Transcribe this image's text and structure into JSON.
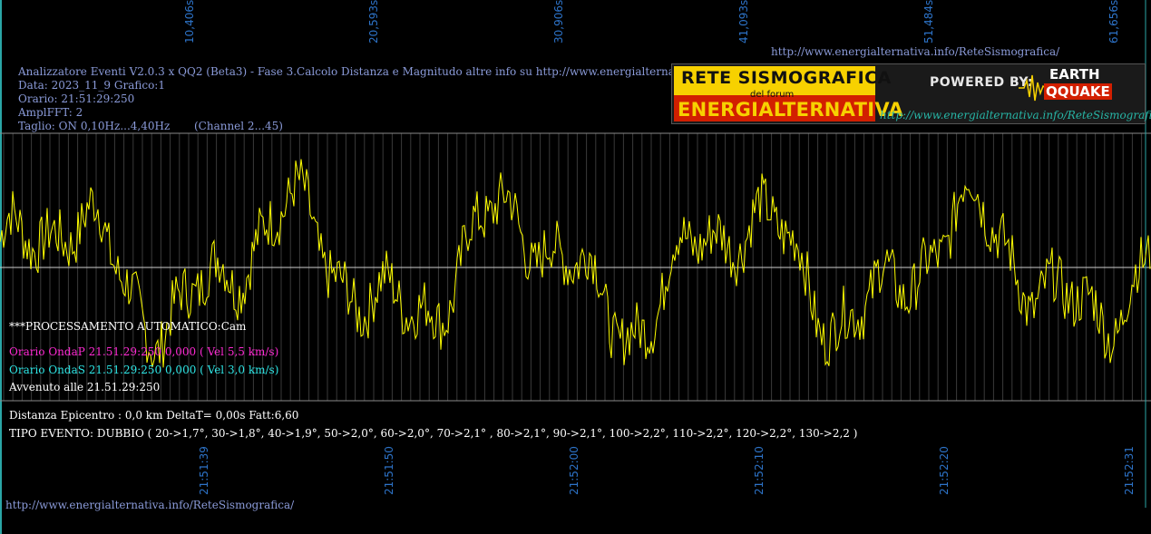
{
  "top_axis": {
    "ticks": [
      "10,406s",
      "20,593s",
      "30,906s",
      "41,093s",
      "51,484s",
      "61,656s"
    ]
  },
  "top_url": "http://www.energialternativa.info/ReteSismografica/",
  "header": {
    "line1": "Analizzatore Eventi V2.0.3 x QQ2 (Beta3) - Fase 3.Calcolo Distanza e Magnitudo altre info su http://www.energialternativa.info/ReteSism",
    "line2": "Data: 2023_11_9 Grafico:1",
    "line3": "Orario: 21:51:29:250",
    "line4": "AmplFFT: 2",
    "line5": "Taglio: ON 0,10Hz...4,40Hz       (Channel 2...45)"
  },
  "logo": {
    "rete": "RETE SISMOGRAFICA",
    "forum": "del forum",
    "energ": "ENERGIALTERNATIVA",
    "powered": "POWERED BY:",
    "earth": "EARTH",
    "quake": "QQUAKE",
    "link": "http://www.energialternativa.info/ReteSismografica"
  },
  "processing": {
    "auto": "***PROCESSAMENTO AUTOMATICO:Cam",
    "onda_p": "Orario OndaP 21.51.29:250  0,000 ( Vel 5,5 km/s)",
    "onda_s": "Orario OndaS 21.51.29:250  0,000 ( Vel 3,0 km/s)",
    "avvenuto": "Avvenuto alle 21.51.29:250"
  },
  "distance": "Distanza Epicentro : 0,0 km DeltaT= 0,00s  Fatt:6,60",
  "tipo_evento": "TIPO EVENTO: DUBBIO ( 20->1,7°, 30->1,8°, 40->1,9°, 50->2,0°, 60->2,0°, 70->2,1° , 80->2,1°, 90->2,1°, 100->2,2°, 110->2,2°, 120->2,2°, 130->2,2 )",
  "bottom_axis": {
    "ticks": [
      "21:51:39",
      "21:51:50",
      "21:52:00",
      "21:52:10",
      "21:52:20",
      "21:52:31"
    ]
  },
  "footer_url": "http://www.energialternativa.info/ReteSismografica/",
  "colors": {
    "background": "#000000",
    "trace": "#ffff00",
    "grid": "#7a7a7a",
    "tick_text": "#2d73c8",
    "header_text": "#8a9ad8",
    "onda_p": "#ff2ad4",
    "onda_s": "#2ee6e6",
    "white_text": "#ffffff",
    "left_border": "#2aa6a6"
  }
}
